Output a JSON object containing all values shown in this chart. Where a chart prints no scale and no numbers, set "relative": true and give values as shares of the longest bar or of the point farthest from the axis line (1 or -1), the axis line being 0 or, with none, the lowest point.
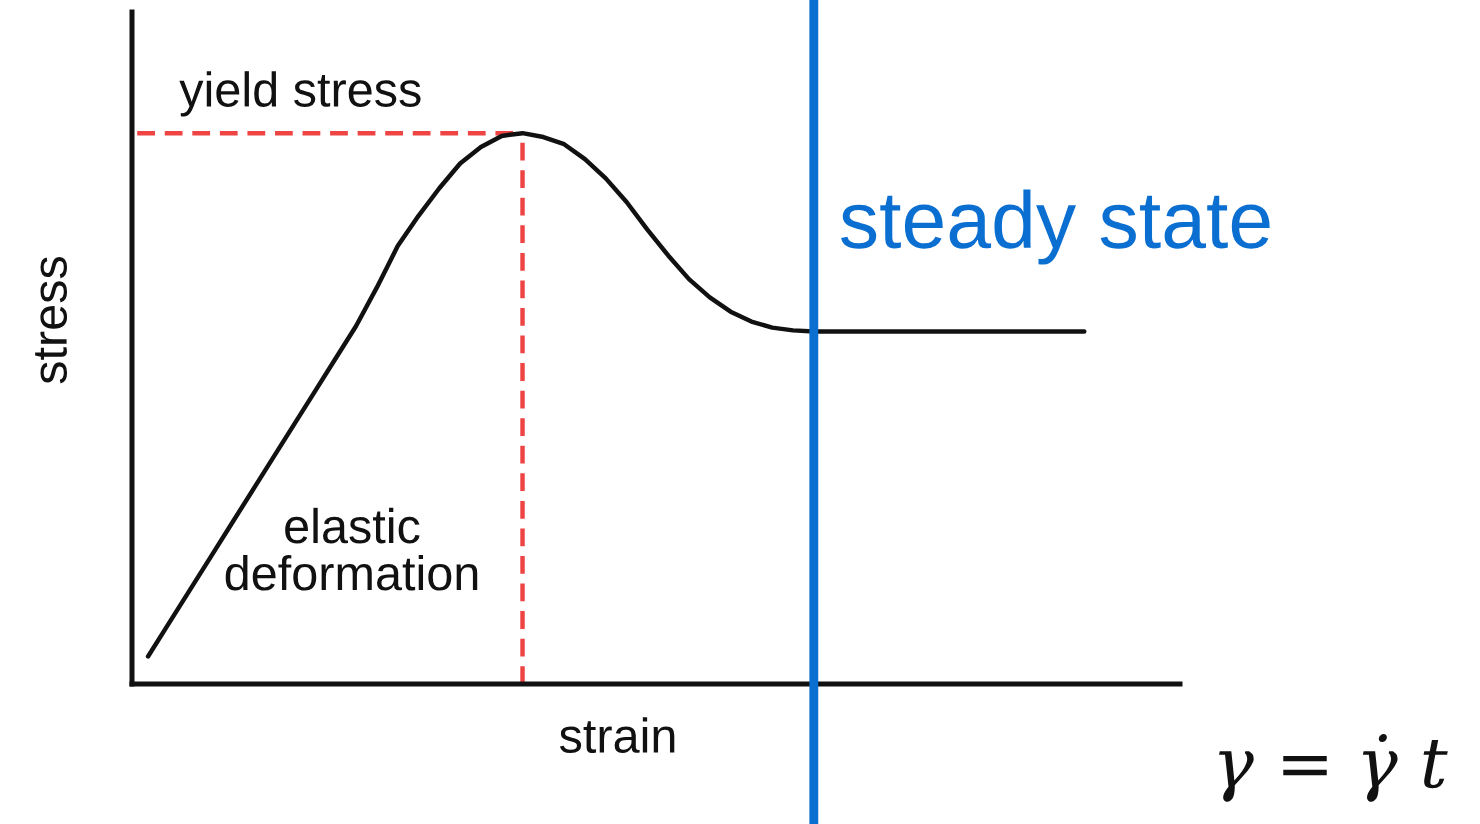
{
  "chart_data": {
    "type": "line",
    "relative": true,
    "xlabel": "strain",
    "ylabel": "stress",
    "categories": [
      null,
      null,
      null,
      null,
      null,
      null,
      null,
      null,
      null,
      null,
      null,
      null,
      null,
      null,
      null,
      null,
      null,
      null,
      null,
      null,
      null,
      null,
      null,
      null,
      null,
      null,
      null,
      null,
      null,
      null,
      null,
      null,
      null,
      null,
      null,
      null,
      null,
      null,
      null,
      null,
      null,
      null,
      null,
      null,
      null,
      null
    ],
    "series": [
      {
        "color": "#111111",
        "values": [
          0.05,
          0.11,
          0.17,
          0.23,
          0.29,
          0.35,
          0.41,
          0.47,
          0.53,
          0.59,
          0.65,
          0.72,
          0.795,
          0.85,
          0.9,
          0.945,
          0.975,
          0.995,
          1,
          0.993,
          0.98,
          0.953,
          0.918,
          0.875,
          0.825,
          0.778,
          0.735,
          0.702,
          0.676,
          0.658,
          0.647,
          0.642,
          0.64,
          0.64,
          0.64,
          0.64,
          0.64,
          0.64,
          0.64,
          0.64,
          0.64,
          0.64,
          0.64,
          0.64,
          0.64,
          0.64
        ]
      }
    ],
    "ref_lines": [
      {
        "axis": "y",
        "value": 1,
        "label": "yield stress",
        "color": "#ef4444",
        "line_style": "dashed"
      }
    ],
    "annotations": [
      "elastic\ndeformation",
      "steady state",
      "γ = γ̇ t"
    ]
  }
}
